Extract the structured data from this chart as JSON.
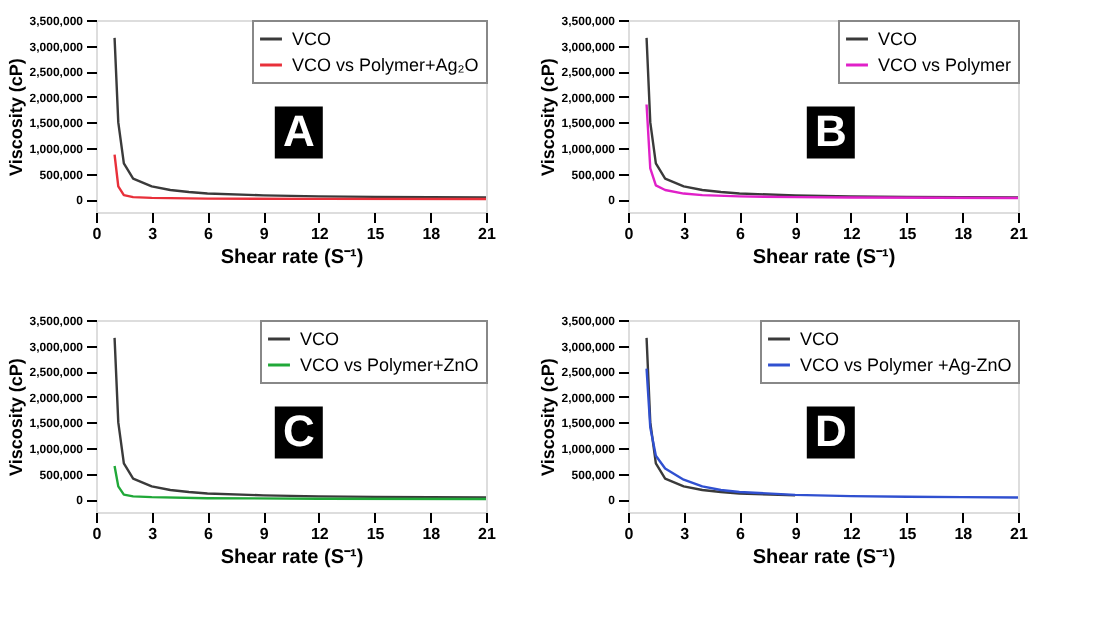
{
  "chart_data": [
    {
      "type": "line",
      "xlabel": "Shear rate (S⁻¹)",
      "ylabel": "Viscosity (cP)",
      "xlim": [
        0,
        21
      ],
      "ylim": [
        -250000,
        3500000
      ],
      "xticks": [
        0,
        3,
        6,
        9,
        12,
        15,
        18,
        21
      ],
      "yticks": [
        {
          "value": 0,
          "label": "0"
        },
        {
          "value": 500000,
          "label": "500,000"
        },
        {
          "value": 1000000,
          "label": "1,000,000"
        },
        {
          "value": 1500000,
          "label": "1,500,000"
        },
        {
          "value": 2000000,
          "label": "2,000,000"
        },
        {
          "value": 2500000,
          "label": "2,500,000"
        },
        {
          "value": 3000000,
          "label": "3,000,000"
        },
        {
          "value": 3500000,
          "label": "3,500,000"
        }
      ],
      "grid": false,
      "legend": "top right",
      "marker": "none",
      "line_style": "solid",
      "annotations": [
        "A"
      ],
      "series": [
        {
          "name": "VCO",
          "color": "#3a3a3a",
          "x": [
            1,
            1.2,
            1.5,
            2,
            3,
            4,
            5,
            6,
            9,
            12,
            15,
            18,
            21
          ],
          "values": [
            3150000,
            1500000,
            700000,
            400000,
            250000,
            180000,
            140000,
            110000,
            75000,
            55000,
            45000,
            38000,
            32000
          ]
        },
        {
          "name": "VCO vs Polymer+Ag₂O",
          "color": "#e8303a",
          "x": [
            1,
            1.2,
            1.5,
            2,
            3,
            6,
            12,
            21
          ],
          "values": [
            870000,
            250000,
            80000,
            40000,
            25000,
            12000,
            6000,
            3000
          ]
        }
      ]
    },
    {
      "type": "line",
      "xlabel": "Shear rate (S⁻¹)",
      "ylabel": "Viscosity (cP)",
      "xlim": [
        0,
        21
      ],
      "ylim": [
        -250000,
        3500000
      ],
      "xticks": [
        0,
        3,
        6,
        9,
        12,
        15,
        18,
        21
      ],
      "yticks": [
        {
          "value": 0,
          "label": "0"
        },
        {
          "value": 500000,
          "label": "500,000"
        },
        {
          "value": 1000000,
          "label": "1,000,000"
        },
        {
          "value": 1500000,
          "label": "1,500,000"
        },
        {
          "value": 2000000,
          "label": "2,000,000"
        },
        {
          "value": 2500000,
          "label": "2,500,000"
        },
        {
          "value": 3000000,
          "label": "3,000,000"
        },
        {
          "value": 3500000,
          "label": "3,500,000"
        }
      ],
      "grid": false,
      "legend": "top right",
      "marker": "none",
      "line_style": "solid",
      "annotations": [
        "B"
      ],
      "series": [
        {
          "name": "VCO",
          "color": "#3a3a3a",
          "x": [
            1,
            1.2,
            1.5,
            2,
            3,
            4,
            5,
            6,
            9,
            12,
            15,
            18,
            21
          ],
          "values": [
            3150000,
            1500000,
            700000,
            400000,
            250000,
            180000,
            140000,
            110000,
            75000,
            55000,
            45000,
            38000,
            32000
          ]
        },
        {
          "name": "VCO vs Polymer",
          "color": "#e020c8",
          "x": [
            1,
            1.2,
            1.5,
            2,
            3,
            4,
            6,
            9,
            12,
            21
          ],
          "values": [
            1850000,
            600000,
            270000,
            180000,
            110000,
            80000,
            55000,
            40000,
            32000,
            22000
          ]
        }
      ]
    },
    {
      "type": "line",
      "xlabel": "Shear rate (S⁻¹)",
      "ylabel": "Viscosity (cP)",
      "xlim": [
        0,
        21
      ],
      "ylim": [
        -250000,
        3500000
      ],
      "xticks": [
        0,
        3,
        6,
        9,
        12,
        15,
        18,
        21
      ],
      "yticks": [
        {
          "value": 0,
          "label": "0"
        },
        {
          "value": 500000,
          "label": "500,000"
        },
        {
          "value": 1000000,
          "label": "1,000,000"
        },
        {
          "value": 1500000,
          "label": "1,500,000"
        },
        {
          "value": 2000000,
          "label": "2,000,000"
        },
        {
          "value": 2500000,
          "label": "2,500,000"
        },
        {
          "value": 3000000,
          "label": "3,000,000"
        },
        {
          "value": 3500000,
          "label": "3,500,000"
        }
      ],
      "grid": false,
      "legend": "top right",
      "marker": "none",
      "line_style": "solid",
      "annotations": [
        "C"
      ],
      "series": [
        {
          "name": "VCO",
          "color": "#3a3a3a",
          "x": [
            1,
            1.2,
            1.5,
            2,
            3,
            4,
            5,
            6,
            9,
            12,
            15,
            18,
            21
          ],
          "values": [
            3150000,
            1500000,
            700000,
            400000,
            250000,
            180000,
            140000,
            110000,
            75000,
            55000,
            45000,
            38000,
            32000
          ]
        },
        {
          "name": "VCO vs Polymer+ZnO",
          "color": "#20a838",
          "x": [
            1,
            1.2,
            1.5,
            2,
            3,
            6,
            12,
            21
          ],
          "values": [
            650000,
            250000,
            90000,
            55000,
            40000,
            20000,
            10000,
            5000
          ]
        }
      ]
    },
    {
      "type": "line",
      "xlabel": "Shear rate (S⁻¹)",
      "ylabel": "Viscosity (cP)",
      "xlim": [
        0,
        21
      ],
      "ylim": [
        -250000,
        3500000
      ],
      "xticks": [
        0,
        3,
        6,
        9,
        12,
        15,
        18,
        21
      ],
      "yticks": [
        {
          "value": 0,
          "label": "0"
        },
        {
          "value": 500000,
          "label": "500,000"
        },
        {
          "value": 1000000,
          "label": "1,000,000"
        },
        {
          "value": 1500000,
          "label": "1,500,000"
        },
        {
          "value": 2000000,
          "label": "2,000,000"
        },
        {
          "value": 2500000,
          "label": "2,500,000"
        },
        {
          "value": 3000000,
          "label": "3,000,000"
        },
        {
          "value": 3500000,
          "label": "3,500,000"
        }
      ],
      "grid": false,
      "legend": "top right",
      "marker": "none",
      "line_style": "solid",
      "annotations": [
        "D"
      ],
      "series": [
        {
          "name": "VCO",
          "color": "#3a3a3a",
          "x": [
            1,
            1.2,
            1.5,
            2,
            3,
            4,
            5,
            6,
            9
          ],
          "values": [
            3150000,
            1500000,
            700000,
            400000,
            250000,
            180000,
            140000,
            110000,
            75000
          ]
        },
        {
          "name": "VCO vs Polymer +Ag-ZnO",
          "color": "#3050d0",
          "x": [
            1,
            1.2,
            1.5,
            2,
            3,
            4,
            5,
            6,
            9,
            12,
            15,
            18,
            21
          ],
          "values": [
            2550000,
            1400000,
            850000,
            600000,
            380000,
            250000,
            180000,
            140000,
            85000,
            60000,
            48000,
            40000,
            34000
          ]
        }
      ]
    }
  ]
}
